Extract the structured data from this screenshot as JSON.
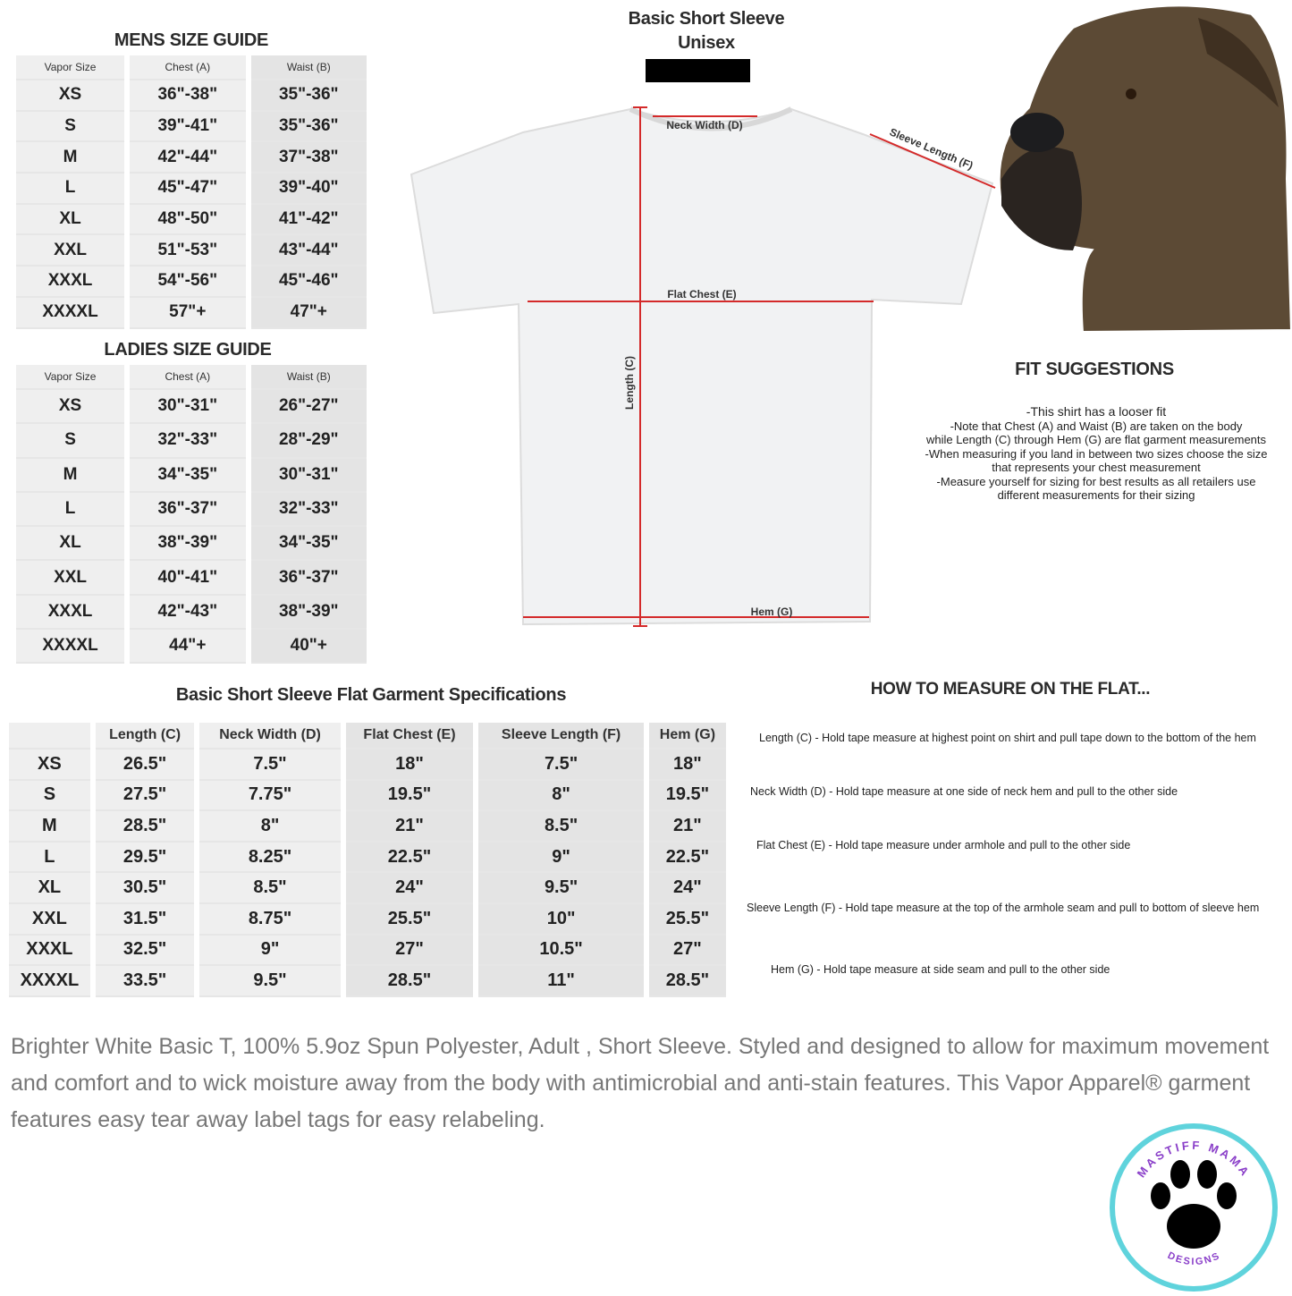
{
  "mens": {
    "title": "MENS SIZE GUIDE",
    "headers": [
      "Vapor Size",
      "Chest (A)",
      "Waist (B)"
    ],
    "rows": [
      [
        "XS",
        "36\"-38\"",
        "35\"-36\""
      ],
      [
        "S",
        "39\"-41\"",
        "35\"-36\""
      ],
      [
        "M",
        "42\"-44\"",
        "37\"-38\""
      ],
      [
        "L",
        "45\"-47\"",
        "39\"-40\""
      ],
      [
        "XL",
        "48\"-50\"",
        "41\"-42\""
      ],
      [
        "XXL",
        "51\"-53\"",
        "43\"-44\""
      ],
      [
        "XXXL",
        "54\"-56\"",
        "45\"-46\""
      ],
      [
        "XXXXL",
        "57\"+",
        "47\"+"
      ]
    ]
  },
  "ladies": {
    "title": "LADIES SIZE GUIDE",
    "headers": [
      "Vapor Size",
      "Chest (A)",
      "Waist (B)"
    ],
    "rows": [
      [
        "XS",
        "30\"-31\"",
        "26\"-27\""
      ],
      [
        "S",
        "32\"-33\"",
        "28\"-29\""
      ],
      [
        "M",
        "34\"-35\"",
        "30\"-31\""
      ],
      [
        "L",
        "36\"-37\"",
        "32\"-33\""
      ],
      [
        "XL",
        "38\"-39\"",
        "34\"-35\""
      ],
      [
        "XXL",
        "40\"-41\"",
        "36\"-37\""
      ],
      [
        "XXXL",
        "42\"-43\"",
        "38\"-39\""
      ],
      [
        "XXXXL",
        "44\"+",
        "40\"+"
      ]
    ]
  },
  "shirt": {
    "title1": "Basic Short Sleeve",
    "title2": "Unisex",
    "labels": {
      "neck": "Neck Width (D)",
      "sleeve": "Sleeve Length (F)",
      "chest": "Flat Chest (E)",
      "length": "Length (C)",
      "hem": "Hem (G)"
    },
    "measure_color": "#d42a2a"
  },
  "fit": {
    "title": "FIT SUGGESTIONS",
    "lines": [
      "-This shirt has a looser fit",
      "-Note that Chest (A) and Waist (B) are taken on the body",
      "while Length (C) through Hem (G) are flat garment measurements",
      "-When measuring if you land in between two sizes choose the size",
      "that represents your chest measurement",
      "-Measure yourself for sizing for best results as all retailers use",
      "different measurements for their sizing"
    ]
  },
  "specs": {
    "title": "Basic Short Sleeve Flat Garment Specifications",
    "headers": [
      "",
      "Length (C)",
      "Neck Width (D)",
      "Flat Chest (E)",
      "Sleeve Length (F)",
      "Hem (G)"
    ],
    "rows": [
      [
        "XS",
        "26.5\"",
        "7.5\"",
        "18\"",
        "7.5\"",
        "18\""
      ],
      [
        "S",
        "27.5\"",
        "7.75\"",
        "19.5\"",
        "8\"",
        "19.5\""
      ],
      [
        "M",
        "28.5\"",
        "8\"",
        "21\"",
        "8.5\"",
        "21\""
      ],
      [
        "L",
        "29.5\"",
        "8.25\"",
        "22.5\"",
        "9\"",
        "22.5\""
      ],
      [
        "XL",
        "30.5\"",
        "8.5\"",
        "24\"",
        "9.5\"",
        "24\""
      ],
      [
        "XXL",
        "31.5\"",
        "8.75\"",
        "25.5\"",
        "10\"",
        "25.5\""
      ],
      [
        "XXXL",
        "32.5\"",
        "9\"",
        "27\"",
        "10.5\"",
        "27\""
      ],
      [
        "XXXXL",
        "33.5\"",
        "9.5\"",
        "28.5\"",
        "11\"",
        "28.5\""
      ]
    ]
  },
  "how": {
    "title": "HOW TO MEASURE ON THE FLAT...",
    "items": [
      "Length (C) - Hold tape measure at highest point on shirt and pull tape down to the bottom of the hem",
      "Neck Width (D) - Hold tape measure at one side of neck hem and pull to the other side",
      "Flat Chest (E) - Hold tape measure under armhole and pull to the other side",
      "Sleeve Length (F) - Hold tape measure at the top of the armhole seam and pull to bottom of sleeve hem",
      "Hem (G) - Hold tape measure at side seam and pull to the other side"
    ]
  },
  "description": "Brighter White Basic T, 100% 5.9oz Spun Polyester, Adult , Short Sleeve. Styled and designed to allow for maximum movement and comfort and to wick moisture away from the body with antimicrobial and anti-stain features. This Vapor Apparel® garment features easy tear away label tags for easy relabeling.",
  "logo": {
    "top": "MASTIFF MAMA",
    "bottom": "DESIGNS",
    "ring_color": "#5fd3dc",
    "text_color": "#8a3fc9"
  }
}
